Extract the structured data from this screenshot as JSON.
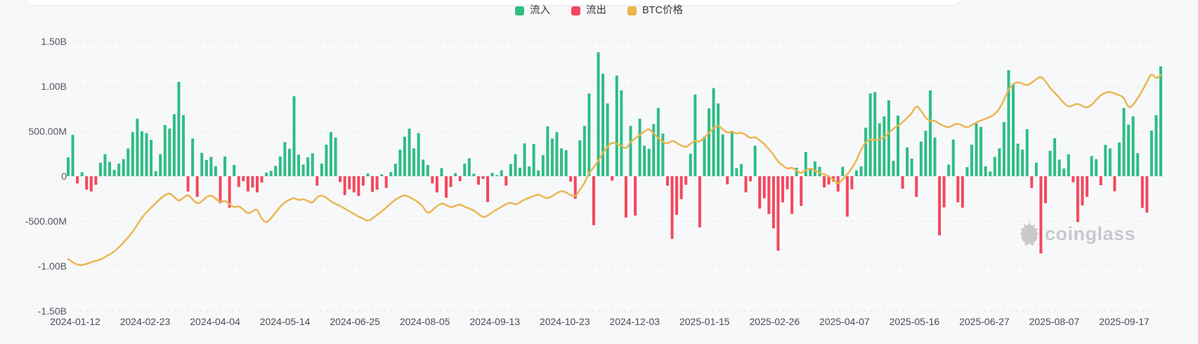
{
  "legend": {
    "items": [
      {
        "label": "流入",
        "color": "#2EBD85"
      },
      {
        "label": "流出",
        "color": "#F5475D"
      },
      {
        "label": "BTC价格",
        "color": "#E9B54C"
      }
    ]
  },
  "watermark": {
    "text": "coinglass",
    "icon": "hedgehog-logo-icon",
    "color": "#c7c9cd"
  },
  "chart_data": {
    "type": "mixed",
    "title": "",
    "grid": "dashed horizontal gridlines",
    "legend_position": "top-center",
    "y_axis": {
      "tick_labels": [
        "1.50B",
        "1.00B",
        "500.00M",
        "0",
        "-500.00M",
        "-1.00B",
        "-1.50B"
      ],
      "tick_values_musd": [
        1500,
        1000,
        500,
        0,
        -500,
        -1000,
        -1500
      ],
      "unit": "USD",
      "range_musd": [
        -1500,
        1500
      ]
    },
    "x_axis": {
      "tick_labels": [
        "2024-01-12",
        "2024-02-23",
        "2024-04-04",
        "2024-05-14",
        "2024-06-25",
        "2024-08-05",
        "2024-09-13",
        "2024-10-23",
        "2024-12-03",
        "2025-01-15",
        "2025-02-26",
        "2025-04-07",
        "2025-05-16",
        "2025-06-27",
        "2025-08-07",
        "2025-09-17"
      ]
    },
    "sampling_note": "daily bars sampled at ~2-day resolution from the pixels; values in USD millions read against the left axis",
    "series": [
      {
        "name": "流入/流出",
        "type": "bar",
        "unit": "USD millions (net flow; green=流入 positive, red=流出 negative)",
        "positive_color": "#2EBD85",
        "negative_color": "#F5475D",
        "values": [
          210,
          460,
          -80,
          45,
          -150,
          -170,
          -95,
          150,
          245,
          160,
          70,
          140,
          190,
          310,
          490,
          640,
          500,
          480,
          405,
          55,
          245,
          570,
          530,
          690,
          1050,
          680,
          -170,
          420,
          -230,
          260,
          180,
          215,
          111,
          -300,
          220,
          -350,
          125,
          -120,
          -55,
          -170,
          -125,
          -180,
          -70,
          40,
          60,
          115,
          220,
          380,
          305,
          890,
          240,
          130,
          210,
          255,
          -105,
          140,
          350,
          490,
          430,
          -65,
          -210,
          -145,
          -180,
          -220,
          -105,
          30,
          -175,
          -150,
          21,
          -130,
          45,
          140,
          295,
          440,
          530,
          310,
          480,
          185,
          125,
          -80,
          -180,
          90,
          -240,
          -120,
          35,
          -55,
          140,
          200,
          28,
          -95,
          -30,
          -288,
          38,
          12,
          65,
          -105,
          135,
          245,
          95,
          365,
          110,
          360,
          65,
          235,
          555,
          420,
          490,
          310,
          290,
          -60,
          -250,
          400,
          560,
          920,
          -545,
          1380,
          1140,
          810,
          -50,
          1120,
          955,
          -460,
          560,
          -438,
          640,
          340,
          305,
          580,
          760,
          475,
          -105,
          -698,
          -430,
          -255,
          -95,
          250,
          908,
          -570,
          440,
          755,
          980,
          810,
          465,
          -90,
          505,
          90,
          135,
          -180,
          -56,
          340,
          -360,
          -245,
          -420,
          -580,
          -830,
          -290,
          -145,
          -420,
          94,
          -330,
          270,
          85,
          165,
          105,
          -125,
          -93,
          -60,
          -170,
          105,
          -450,
          -145,
          65,
          108,
          540,
          921,
          936,
          590,
          665,
          845,
          172,
          674,
          -140,
          320,
          195,
          -230,
          385,
          505,
          955,
          430,
          -659,
          -347,
          130,
          408,
          -290,
          -350,
          101,
          350,
          588,
          548,
          110,
          53,
          215,
          310,
          602,
          1180,
          1030,
          363,
          297,
          524,
          -131,
          150,
          -860,
          -300,
          283,
          423,
          185,
          85,
          243,
          -68,
          -510,
          -325,
          -230,
          225,
          190,
          -100,
          349,
          310,
          -167,
          376,
          759,
          574,
          667,
          257,
          -352,
          -405,
          508,
          680,
          1222
        ]
      },
      {
        "name": "BTC价格",
        "type": "line",
        "color": "#E9B54C",
        "axis": "hidden (no visible price scale; values are the line's position in left-axis display units, USD millions)",
        "values": [
          -920,
          -960,
          -985,
          -990,
          -975,
          -960,
          -940,
          -930,
          -900,
          -870,
          -840,
          -790,
          -740,
          -680,
          -620,
          -540,
          -460,
          -400,
          -350,
          -300,
          -250,
          -210,
          -185,
          -230,
          -280,
          -240,
          -200,
          -260,
          -310,
          -280,
          -230,
          -210,
          -250,
          -290,
          -270,
          -310,
          -350,
          -330,
          -370,
          -420,
          -390,
          -360,
          -480,
          -520,
          -470,
          -400,
          -340,
          -290,
          -260,
          -240,
          -270,
          -250,
          -280,
          -300,
          -230,
          -210,
          -240,
          -280,
          -310,
          -330,
          -360,
          -390,
          -420,
          -450,
          -470,
          -500,
          -470,
          -430,
          -390,
          -350,
          -300,
          -260,
          -230,
          -210,
          -230,
          -260,
          -290,
          -340,
          -420,
          -380,
          -330,
          -300,
          -320,
          -350,
          -330,
          -310,
          -340,
          -360,
          -380,
          -420,
          -460,
          -440,
          -400,
          -370,
          -340,
          -310,
          -290,
          -320,
          -290,
          -260,
          -240,
          -220,
          -200,
          -230,
          -250,
          -220,
          -190,
          -160,
          -180,
          -210,
          -230,
          -150,
          -80,
          40,
          95,
          175,
          260,
          330,
          380,
          360,
          340,
          300,
          380,
          420,
          460,
          500,
          530,
          480,
          420,
          380,
          360,
          400,
          370,
          340,
          320,
          360,
          400,
          380,
          430,
          480,
          540,
          570,
          520,
          480,
          500,
          470,
          490,
          460,
          420,
          440,
          400,
          360,
          300,
          240,
          160,
          120,
          80,
          100,
          60,
          30,
          70,
          90,
          60,
          40,
          20,
          0,
          -40,
          -87,
          -40,
          20,
          90,
          175,
          300,
          380,
          413,
          400,
          410,
          430,
          480,
          530,
          560,
          600,
          650,
          700,
          794,
          730,
          650,
          610,
          620,
          580,
          560,
          540,
          570,
          590,
          560,
          540,
          570,
          600,
          620,
          640,
          660,
          690,
          750,
          850,
          968,
          1030,
          1048,
          1030,
          1010,
          1040,
          1080,
          1112,
          1060,
          980,
          929,
          873,
          810,
          770,
          790,
          810,
          780,
          760,
          790,
          850,
          905,
          930,
          940,
          920,
          900,
          880,
          754,
          790,
          870,
          950,
          1048,
          1151,
          1080,
          1127
        ]
      }
    ]
  }
}
